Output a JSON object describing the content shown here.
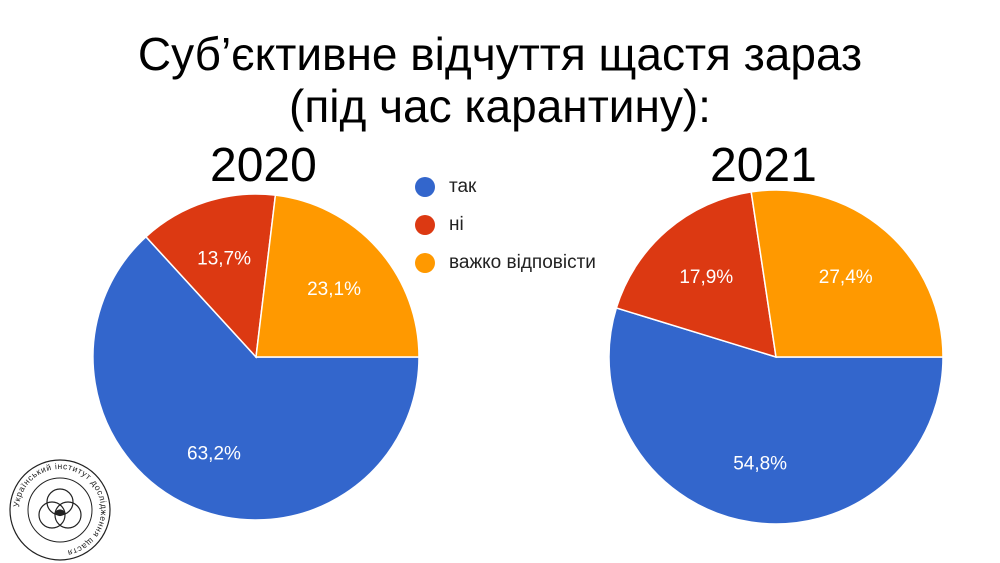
{
  "title_line1": "Суб’єктивне відчуття щастя зараз",
  "title_line2": "(під час карантину):",
  "chart_data": [
    {
      "type": "pie",
      "title": "2020",
      "categories": [
        "так",
        "ні",
        "важко відповісти"
      ],
      "values": [
        63.2,
        13.7,
        23.1
      ],
      "labels": [
        "63,2%",
        "13,7%",
        "23,1%"
      ],
      "colors": [
        "#3366cc",
        "#dc3912",
        "#ff9900"
      ]
    },
    {
      "type": "pie",
      "title": "2021",
      "categories": [
        "так",
        "ні",
        "важко відповісти"
      ],
      "values": [
        54.8,
        17.9,
        27.4
      ],
      "labels": [
        "54,8%",
        "17,9%",
        "27,4%"
      ],
      "colors": [
        "#3366cc",
        "#dc3912",
        "#ff9900"
      ]
    }
  ],
  "legend": [
    {
      "label": "так",
      "color": "#3366cc"
    },
    {
      "label": "ні",
      "color": "#dc3912"
    },
    {
      "label": "важко відповісти",
      "color": "#ff9900"
    }
  ],
  "seal": {
    "text": "Український інститут дослідження щастя",
    "icon": "three-circles-logo-icon"
  }
}
